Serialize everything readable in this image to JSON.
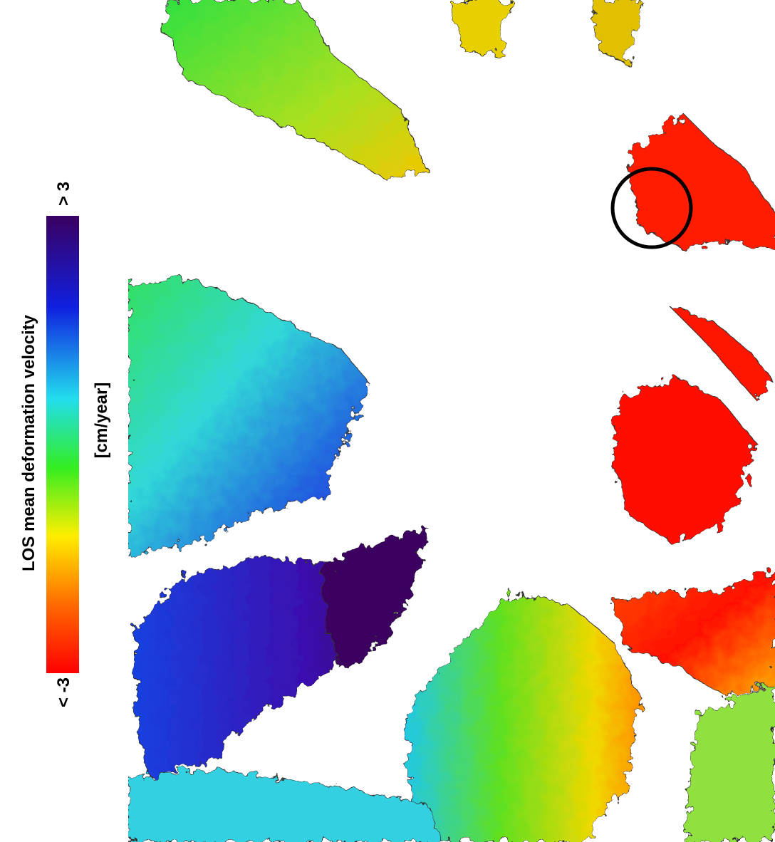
{
  "colorbar": {
    "title": "LOS mean deformation velocity",
    "unit": "[cm/year]",
    "max_label": "> 3",
    "min_label": "< -3"
  }
}
